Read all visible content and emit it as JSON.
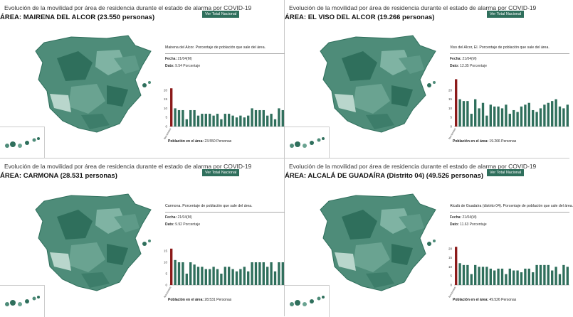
{
  "colors": {
    "accent": "#8b1a1a",
    "bar": "#2f6f5c",
    "map_dark": "#2f6f5c",
    "map_light": "#b9d6cc"
  },
  "icons": [
    "spain-map",
    "canary-islands-map"
  ],
  "panels": [
    {
      "title": "Evolución de la movilidad por área de residencia durante el estado de alarma por COVID-19",
      "area": "ÁREA: MAIRENA DEL ALCOR (23.550 personas)",
      "button": "Ver Total Nacional",
      "desc": "Mairena del Alcor. Porcentaje de población que sale del área.",
      "fecha_label": "Fecha:",
      "fecha": "21/04(M)",
      "dato_label": "Dato:",
      "dato": "9.54 Porcentaje",
      "pob_label": "Población en el área:",
      "pob": "23.550 Personas"
    },
    {
      "title": "Evolución de la movilidad por área de residencia durante el estado de alarma por COVID-19",
      "area": "ÁREA: EL VISO DEL ALCOR (19.266 personas)",
      "button": "Ver Total Nacional",
      "desc": "Viso del Alcor, El. Porcentaje de población que sale del área.",
      "fecha_label": "Fecha:",
      "fecha": "21/04(M)",
      "dato_label": "Dato:",
      "dato": "12.35 Porcentaje",
      "pob_label": "Población en el área:",
      "pob": "19.266 Personas"
    },
    {
      "title": "Evolución de la movilidad por área de residencia durante el estado de alarma por COVID-19",
      "area": "ÁREA: CARMONA (28.531 personas)",
      "button": "Ver Total Nacional",
      "desc": "Carmona. Porcentaje de población que sale del área.",
      "fecha_label": "Fecha:",
      "fecha": "21/04(M)",
      "dato_label": "Dato:",
      "dato": "9.92 Porcentaje",
      "pob_label": "Población en el área:",
      "pob": "28.531 Personas"
    },
    {
      "title": "Evolución de la movilidad por área de residencia durante el estado de alarma por COVID-19",
      "area": "ÁREA: ALCALÁ DE GUADAÍRA (Distrito 04) (49.526 personas)",
      "button": "Ver Total Nacional",
      "desc": "Alcalá de Guadaíra (distrito 04). Porcentaje de población que sale del área.",
      "fecha_label": "Fecha:",
      "fecha": "21/04(M)",
      "dato_label": "Dato:",
      "dato": "11.63 Porcentaje",
      "pob_label": "Población en el área:",
      "pob": "49.526 Personas"
    }
  ],
  "chart_data": [
    {
      "type": "bar",
      "ylim": [
        0,
        25
      ],
      "yticks": [
        0,
        5,
        10,
        15,
        20
      ],
      "first_bar_label": "Noviembre",
      "values": [
        21,
        10,
        9,
        9,
        4,
        9,
        9,
        6,
        7,
        7,
        7,
        6,
        7,
        4,
        7,
        7,
        6,
        5,
        6,
        5,
        6,
        10,
        9,
        9,
        9,
        6,
        7,
        4,
        10,
        9
      ]
    },
    {
      "type": "bar",
      "ylim": [
        0,
        25
      ],
      "yticks": [
        0,
        5,
        10,
        15,
        20
      ],
      "first_bar_label": "Noviembre",
      "values": [
        26,
        15,
        14,
        14,
        7,
        15,
        10,
        13,
        6,
        12,
        11,
        11,
        10,
        12,
        7,
        9,
        8,
        11,
        12,
        13,
        9,
        8,
        10,
        12,
        13,
        14,
        15,
        11,
        10,
        12
      ]
    },
    {
      "type": "bar",
      "ylim": [
        0,
        20
      ],
      "yticks": [
        0,
        5,
        10,
        15
      ],
      "first_bar_label": "Noviembre",
      "values": [
        16,
        11,
        10,
        10,
        5,
        10,
        9,
        8,
        8,
        7,
        7,
        8,
        7,
        5,
        8,
        8,
        7,
        6,
        7,
        8,
        6,
        10,
        10,
        10,
        10,
        8,
        10,
        6,
        10,
        10
      ]
    },
    {
      "type": "bar",
      "ylim": [
        0,
        25
      ],
      "yticks": [
        0,
        5,
        10,
        15,
        20
      ],
      "first_bar_label": "Noviembre",
      "values": [
        21,
        12,
        11,
        11,
        6,
        11,
        10,
        10,
        10,
        9,
        8,
        9,
        9,
        6,
        9,
        8,
        8,
        7,
        9,
        9,
        7,
        11,
        11,
        11,
        11,
        8,
        10,
        6,
        11,
        10
      ]
    }
  ]
}
